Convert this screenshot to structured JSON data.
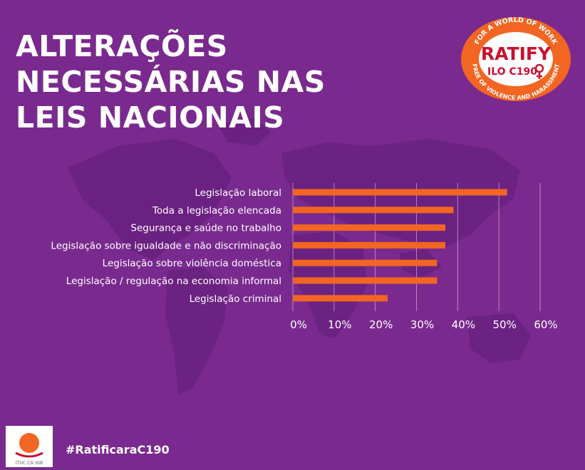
{
  "title_lines": [
    "ALTERAÇÕES",
    "NECESSÁRIAS NAS",
    "LEIS NACIONAIS"
  ],
  "badge": {
    "top_text": "FOR A WORLD OF WORK",
    "main": "RATIFY",
    "sub": "ILO C190",
    "bottom_text": "FREE OF VIOLENCE AND HARASSMENT"
  },
  "footer": {
    "logo_text": "ITUC CSI IGB",
    "hashtag": "#RatificaraC190"
  },
  "colors": {
    "background": "#7a2a8e",
    "bar": "#f26522",
    "badge_ring": "#f26522",
    "badge_inner": "#ffffff",
    "badge_text": "#c8102e",
    "map": "#6a2180"
  },
  "chart_data": {
    "type": "bar",
    "orientation": "horizontal",
    "categories": [
      "Legislação laboral",
      "Toda a legislação elencada",
      "Segurança e saúde no trabalho",
      "Legislação sobre igualdade e não discriminação",
      "Legislação sobre violência doméstica",
      "Legislação / regulação na economia informal",
      "Legislação criminal"
    ],
    "values": [
      52,
      39,
      37,
      37,
      35,
      35,
      23
    ],
    "xlim": [
      0,
      60
    ],
    "xticks": [
      "0%",
      "10%",
      "20%",
      "30%",
      "40%",
      "50%",
      "60%"
    ],
    "xlabel": "",
    "ylabel": "",
    "grid": "vertical"
  }
}
